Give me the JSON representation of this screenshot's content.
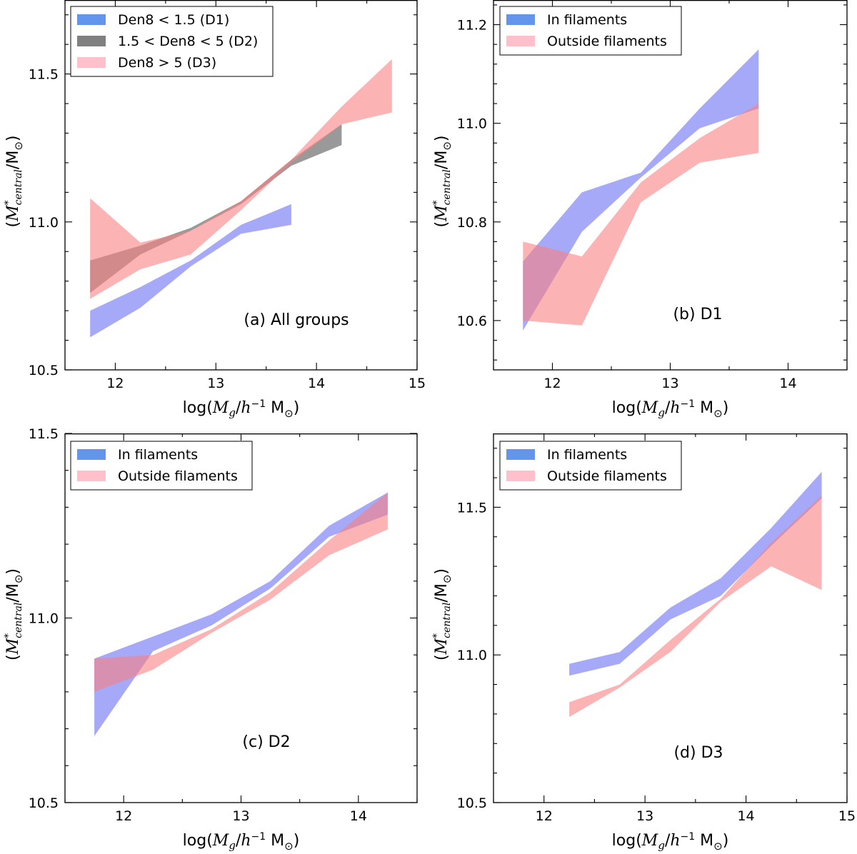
{
  "x_axis_label": {
    "prefix": "log(",
    "main": "M",
    "sub": "g",
    "slash": "/",
    "h": "h",
    "exp": "−1",
    "unit": " M",
    "sun": "⊙",
    "suffix": ")"
  },
  "y_axis_label": {
    "open": "(",
    "main": "M",
    "sup": "*",
    "sub": "central",
    "slash": "/M",
    "sun": "⊙",
    "close": ")"
  },
  "chart_data": [
    {
      "id": "a",
      "type": "area",
      "title": "(a) All groups",
      "xlabel": "log(Mg/h^-1 M⊙)",
      "ylabel": "(M*central/M⊙)",
      "xlim": [
        11.5,
        15.0
      ],
      "ylim": [
        10.5,
        11.75
      ],
      "xticks": [
        12,
        13,
        14,
        15
      ],
      "yticks": [
        10.5,
        11.0,
        11.5
      ],
      "legend_position": "top-left",
      "series": [
        {
          "name": "Den8 < 1.5 (D1)",
          "color": "#6a6ff2",
          "legend_color": "#6495ed",
          "opacity": 0.6,
          "x": [
            11.75,
            12.25,
            12.75,
            13.25,
            13.75
          ],
          "lower": [
            10.61,
            10.71,
            10.85,
            10.96,
            10.99
          ],
          "upper": [
            10.7,
            10.78,
            10.87,
            10.99,
            11.06
          ]
        },
        {
          "name": "1.5 < Den8 < 5 (D2)",
          "color": "#555555",
          "legend_color": "#808080",
          "opacity": 0.6,
          "x": [
            11.75,
            12.25,
            12.75,
            13.25,
            13.75,
            14.25
          ],
          "lower": [
            10.76,
            10.89,
            10.97,
            11.06,
            11.19,
            11.26
          ],
          "upper": [
            10.87,
            10.92,
            10.98,
            11.07,
            11.21,
            11.33
          ]
        },
        {
          "name": "Den8 > 5 (D3)",
          "color": "#fa8080",
          "legend_color": "#ffc0cb",
          "opacity": 0.6,
          "x": [
            11.75,
            12.25,
            12.75,
            13.25,
            13.75,
            14.25,
            14.75
          ],
          "lower": [
            10.74,
            10.84,
            10.89,
            11.04,
            11.2,
            11.33,
            11.37
          ],
          "upper": [
            11.08,
            10.93,
            10.97,
            11.07,
            11.21,
            11.39,
            11.55
          ]
        }
      ]
    },
    {
      "id": "b",
      "type": "area",
      "title": "(b) D1",
      "xlabel": "log(Mg/h^-1 M⊙)",
      "ylabel": "(M*central/M⊙)",
      "xlim": [
        11.5,
        14.5
      ],
      "ylim": [
        10.5,
        11.25
      ],
      "xticks": [
        12,
        13,
        14
      ],
      "yticks": [
        10.6,
        10.8,
        11.0,
        11.2
      ],
      "legend_position": "top-left",
      "series": [
        {
          "name": "In filaments",
          "color": "#6a6ff2",
          "legend_color": "#6495ed",
          "opacity": 0.6,
          "x": [
            11.75,
            12.25,
            12.75,
            13.25,
            13.75
          ],
          "lower": [
            10.58,
            10.78,
            10.89,
            10.99,
            11.03
          ],
          "upper": [
            10.72,
            10.86,
            10.9,
            11.03,
            11.15
          ]
        },
        {
          "name": "Outside filaments",
          "color": "#fa8080",
          "legend_color": "#ffc0cb",
          "opacity": 0.6,
          "x": [
            11.75,
            12.25,
            12.75,
            13.25,
            13.75
          ],
          "lower": [
            10.6,
            10.59,
            10.84,
            10.92,
            10.94
          ],
          "upper": [
            10.76,
            10.73,
            10.88,
            10.97,
            11.04
          ]
        }
      ]
    },
    {
      "id": "c",
      "type": "area",
      "title": "(c) D2",
      "xlabel": "log(Mg/h^-1 M⊙)",
      "ylabel": "(M*central/M⊙)",
      "xlim": [
        11.5,
        14.5
      ],
      "ylim": [
        10.5,
        11.5
      ],
      "xticks": [
        12,
        13,
        14
      ],
      "yticks": [
        10.5,
        11.0,
        11.5
      ],
      "legend_position": "top-left",
      "series": [
        {
          "name": "In filaments",
          "color": "#6a6ff2",
          "legend_color": "#6495ed",
          "opacity": 0.6,
          "x": [
            11.75,
            12.25,
            12.75,
            13.25,
            13.75,
            14.25
          ],
          "lower": [
            10.68,
            10.91,
            10.98,
            11.08,
            11.22,
            11.28
          ],
          "upper": [
            10.89,
            10.95,
            11.01,
            11.1,
            11.25,
            11.34
          ]
        },
        {
          "name": "Outside filaments",
          "color": "#fa8080",
          "legend_color": "#ffc0cb",
          "opacity": 0.6,
          "x": [
            11.75,
            12.25,
            12.75,
            13.25,
            13.75,
            14.25
          ],
          "lower": [
            10.8,
            10.86,
            10.96,
            11.05,
            11.17,
            11.24
          ],
          "upper": [
            10.89,
            10.9,
            10.97,
            11.07,
            11.21,
            11.34
          ]
        }
      ]
    },
    {
      "id": "d",
      "type": "area",
      "title": "(d) D3",
      "xlabel": "log(Mg/h^-1 M⊙)",
      "ylabel": "(M*central/M⊙)",
      "xlim": [
        11.5,
        15.0
      ],
      "ylim": [
        10.5,
        11.75
      ],
      "xticks": [
        12,
        13,
        14,
        15
      ],
      "yticks": [
        10.5,
        11.0,
        11.5
      ],
      "legend_position": "top-left",
      "series": [
        {
          "name": "In filaments",
          "color": "#6a6ff2",
          "legend_color": "#6495ed",
          "opacity": 0.6,
          "x": [
            12.25,
            12.75,
            13.25,
            13.75,
            14.25,
            14.75
          ],
          "lower": [
            10.93,
            10.97,
            11.12,
            11.2,
            11.37,
            11.53
          ],
          "upper": [
            10.97,
            11.01,
            11.16,
            11.26,
            11.43,
            11.62
          ]
        },
        {
          "name": "Outside filaments",
          "color": "#fa8080",
          "legend_color": "#ffc0cb",
          "opacity": 0.6,
          "x": [
            12.25,
            12.75,
            13.25,
            13.75,
            14.25,
            14.75
          ],
          "lower": [
            10.79,
            10.89,
            11.01,
            11.18,
            11.3,
            11.22
          ],
          "upper": [
            10.84,
            10.9,
            11.05,
            11.19,
            11.38,
            11.54
          ]
        }
      ]
    }
  ]
}
